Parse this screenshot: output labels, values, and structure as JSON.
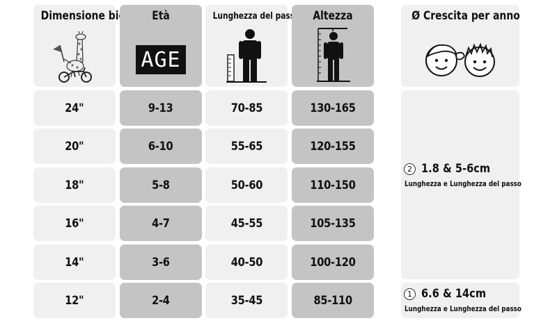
{
  "headers": {
    "size": "Dimensione bici",
    "age": "Età",
    "inseam": "Lunghezza del passo",
    "height": "Altezza",
    "growth": "Ø Crescita per anno"
  },
  "age_icon_text": "AGE",
  "rows": [
    {
      "size": "24\"",
      "age": "9-13",
      "inseam": "70-85",
      "height": "130-165"
    },
    {
      "size": "20\"",
      "age": "6-10",
      "inseam": "55-65",
      "height": "120-155"
    },
    {
      "size": "18\"",
      "age": "5-8",
      "inseam": "50-60",
      "height": "110-150"
    },
    {
      "size": "16\"",
      "age": "4-7",
      "inseam": "45-55",
      "height": "105-135"
    },
    {
      "size": "14\"",
      "age": "3-6",
      "inseam": "40-50",
      "height": "100-120"
    },
    {
      "size": "12\"",
      "age": "2-4",
      "inseam": "35-45",
      "height": "85-110"
    }
  ],
  "growth": [
    {
      "number": "2",
      "value": "1.8 & 5-6cm",
      "subtitle": "Lunghezza e Lunghezza del passo"
    },
    {
      "number": "1",
      "value": "6.6 & 14cm",
      "subtitle": "Lunghezza e Lunghezza del passo"
    }
  ],
  "icons": {
    "size": "giraffe-bike-icon",
    "inseam": "person-inseam-ruler-icon",
    "height": "person-height-ruler-icon",
    "growth": "children-faces-icon"
  },
  "colors": {
    "light_cell": "#f0f0f0",
    "dark_cell": "#c4c4c4",
    "text": "#111111"
  }
}
